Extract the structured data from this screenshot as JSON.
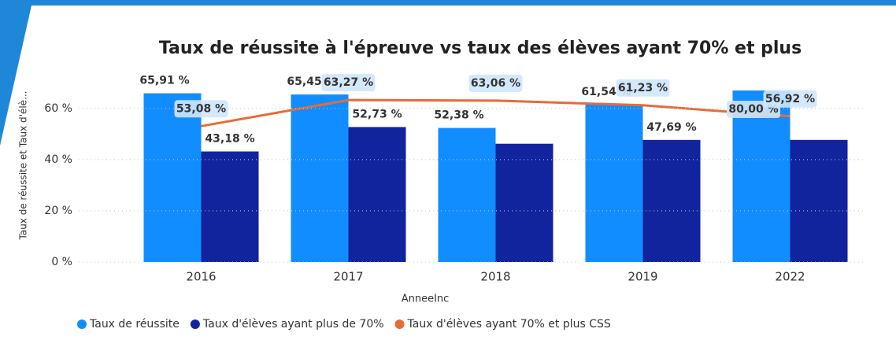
{
  "chart_data": {
    "type": "bar-line",
    "title": "Taux de réussite à l'épreuve vs taux des élèves ayant 70% et plus",
    "y_label": "Taux de réussite et Taux d'élè...",
    "x_label": "AnneeInc",
    "categories": [
      "2016",
      "2017",
      "2018",
      "2019",
      "2022"
    ],
    "ylim": [
      0,
      67
    ],
    "yticks": [
      {
        "value": 0,
        "label": "0 %"
      },
      {
        "value": 20,
        "label": "20 %"
      },
      {
        "value": 40,
        "label": "40 %"
      },
      {
        "value": 60,
        "label": "60 %"
      }
    ],
    "grid": true,
    "legend": "bottom-left",
    "series": [
      {
        "name": "Taux de réussite",
        "color": "#118DFF",
        "kind": "bar",
        "values": [
          65.91,
          65.45,
          52.38,
          61.54,
          80.0
        ],
        "value_labels": [
          "65,91 %",
          "65,45 %",
          "52,38 %",
          "61,54 %",
          "80,00 %"
        ]
      },
      {
        "name": "Taux d'élèves ayant plus de 70%",
        "color": "#12239E",
        "kind": "bar",
        "values": [
          43.18,
          52.73,
          46.2,
          47.69,
          47.7
        ],
        "value_labels": [
          "43,18 %",
          "52,73 %",
          null,
          "47,69 %",
          null
        ]
      },
      {
        "name": "Taux d'élèves ayant 70% et plus CSS",
        "color": "#E66C37",
        "kind": "line",
        "values": [
          53.08,
          63.27,
          63.06,
          61.23,
          56.92
        ],
        "value_labels": [
          "53,08 %",
          "63,27 %",
          "63,06 %",
          "61,23 %",
          "56,92 %"
        ]
      }
    ]
  }
}
